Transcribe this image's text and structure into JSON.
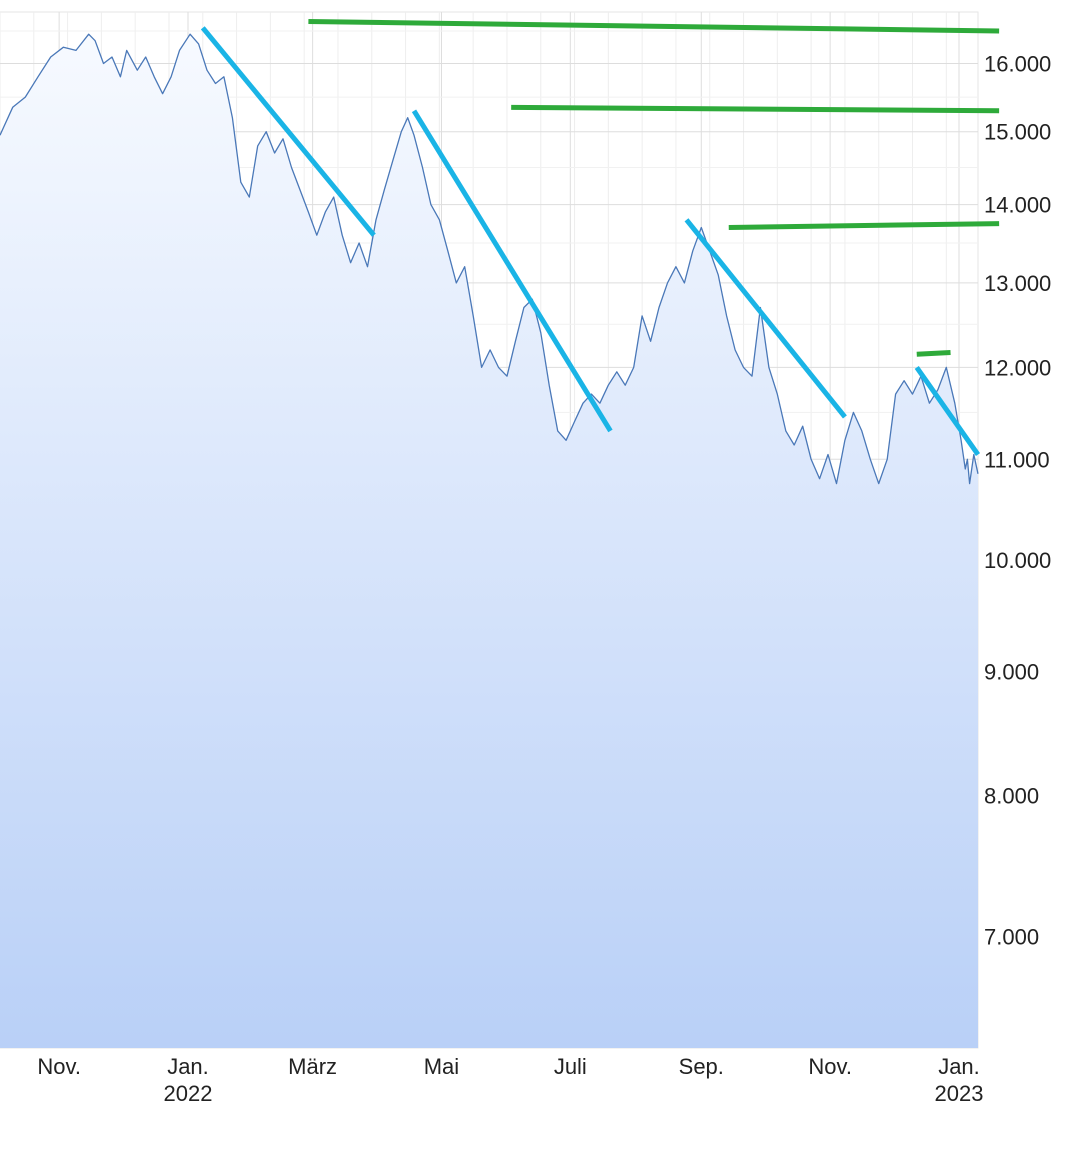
{
  "chart_data": {
    "type": "line",
    "y_scale": "log",
    "ylim": [
      6300,
      16800
    ],
    "y_ticks": [
      {
        "value": 7000,
        "label": "7.000"
      },
      {
        "value": 8000,
        "label": "8.000"
      },
      {
        "value": 9000,
        "label": "9.000"
      },
      {
        "value": 10000,
        "label": "10.000"
      },
      {
        "value": 11000,
        "label": "11.000"
      },
      {
        "value": 12000,
        "label": "12.000"
      },
      {
        "value": 13000,
        "label": "13.000"
      },
      {
        "value": 14000,
        "label": "14.000"
      },
      {
        "value": 15000,
        "label": "15.000"
      },
      {
        "value": 16000,
        "label": "16.000"
      }
    ],
    "xlim": [
      "2021-10-04",
      "2023-01-10"
    ],
    "x_ticks": [
      {
        "date": "2021-11-01",
        "label": "Nov.",
        "sublabel": ""
      },
      {
        "date": "2022-01-01",
        "label": "Jan.",
        "sublabel": "2022"
      },
      {
        "date": "2022-03-01",
        "label": "März",
        "sublabel": ""
      },
      {
        "date": "2022-05-01",
        "label": "Mai",
        "sublabel": ""
      },
      {
        "date": "2022-07-01",
        "label": "Juli",
        "sublabel": ""
      },
      {
        "date": "2022-09-01",
        "label": "Sep.",
        "sublabel": ""
      },
      {
        "date": "2022-11-01",
        "label": "Nov.",
        "sublabel": ""
      },
      {
        "date": "2023-01-01",
        "label": "Jan.",
        "sublabel": "2023"
      }
    ],
    "grid": true,
    "legend": "none",
    "series": [
      {
        "color": "#4a78b8",
        "fill_top": "#f7faff",
        "fill_bottom": "#b9d0f7",
        "points": [
          [
            "2021-10-04",
            14950
          ],
          [
            "2021-10-10",
            15350
          ],
          [
            "2021-10-16",
            15500
          ],
          [
            "2021-10-22",
            15800
          ],
          [
            "2021-10-28",
            16100
          ],
          [
            "2021-11-03",
            16250
          ],
          [
            "2021-11-09",
            16200
          ],
          [
            "2021-11-15",
            16450
          ],
          [
            "2021-11-18",
            16350
          ],
          [
            "2021-11-22",
            16000
          ],
          [
            "2021-11-26",
            16100
          ],
          [
            "2021-11-30",
            15800
          ],
          [
            "2021-12-03",
            16200
          ],
          [
            "2021-12-08",
            15900
          ],
          [
            "2021-12-12",
            16100
          ],
          [
            "2021-12-16",
            15800
          ],
          [
            "2021-12-20",
            15550
          ],
          [
            "2021-12-24",
            15800
          ],
          [
            "2021-12-28",
            16200
          ],
          [
            "2022-01-02",
            16450
          ],
          [
            "2022-01-06",
            16300
          ],
          [
            "2022-01-10",
            15900
          ],
          [
            "2022-01-14",
            15700
          ],
          [
            "2022-01-18",
            15800
          ],
          [
            "2022-01-22",
            15200
          ],
          [
            "2022-01-26",
            14300
          ],
          [
            "2022-01-30",
            14100
          ],
          [
            "2022-02-03",
            14800
          ],
          [
            "2022-02-07",
            15000
          ],
          [
            "2022-02-11",
            14700
          ],
          [
            "2022-02-15",
            14900
          ],
          [
            "2022-02-19",
            14500
          ],
          [
            "2022-02-23",
            14200
          ],
          [
            "2022-02-27",
            13900
          ],
          [
            "2022-03-03",
            13600
          ],
          [
            "2022-03-07",
            13900
          ],
          [
            "2022-03-11",
            14100
          ],
          [
            "2022-03-15",
            13600
          ],
          [
            "2022-03-19",
            13250
          ],
          [
            "2022-03-23",
            13500
          ],
          [
            "2022-03-27",
            13200
          ],
          [
            "2022-03-31",
            13800
          ],
          [
            "2022-04-04",
            14200
          ],
          [
            "2022-04-08",
            14600
          ],
          [
            "2022-04-12",
            15000
          ],
          [
            "2022-04-15",
            15200
          ],
          [
            "2022-04-18",
            14950
          ],
          [
            "2022-04-22",
            14500
          ],
          [
            "2022-04-26",
            14000
          ],
          [
            "2022-04-30",
            13800
          ],
          [
            "2022-05-04",
            13400
          ],
          [
            "2022-05-08",
            13000
          ],
          [
            "2022-05-12",
            13200
          ],
          [
            "2022-05-16",
            12600
          ],
          [
            "2022-05-20",
            12000
          ],
          [
            "2022-05-24",
            12200
          ],
          [
            "2022-05-28",
            12000
          ],
          [
            "2022-06-01",
            11900
          ],
          [
            "2022-06-05",
            12300
          ],
          [
            "2022-06-09",
            12700
          ],
          [
            "2022-06-13",
            12800
          ],
          [
            "2022-06-17",
            12400
          ],
          [
            "2022-06-21",
            11800
          ],
          [
            "2022-06-25",
            11300
          ],
          [
            "2022-06-29",
            11200
          ],
          [
            "2022-07-03",
            11400
          ],
          [
            "2022-07-07",
            11600
          ],
          [
            "2022-07-11",
            11700
          ],
          [
            "2022-07-15",
            11600
          ],
          [
            "2022-07-19",
            11800
          ],
          [
            "2022-07-23",
            11950
          ],
          [
            "2022-07-27",
            11800
          ],
          [
            "2022-07-31",
            12000
          ],
          [
            "2022-08-04",
            12600
          ],
          [
            "2022-08-08",
            12300
          ],
          [
            "2022-08-12",
            12700
          ],
          [
            "2022-08-16",
            13000
          ],
          [
            "2022-08-20",
            13200
          ],
          [
            "2022-08-24",
            13000
          ],
          [
            "2022-08-28",
            13400
          ],
          [
            "2022-09-01",
            13700
          ],
          [
            "2022-09-05",
            13400
          ],
          [
            "2022-09-09",
            13100
          ],
          [
            "2022-09-13",
            12600
          ],
          [
            "2022-09-17",
            12200
          ],
          [
            "2022-09-21",
            12000
          ],
          [
            "2022-09-25",
            11900
          ],
          [
            "2022-09-29",
            12700
          ],
          [
            "2022-10-03",
            12000
          ],
          [
            "2022-10-07",
            11700
          ],
          [
            "2022-10-11",
            11300
          ],
          [
            "2022-10-15",
            11150
          ],
          [
            "2022-10-19",
            11350
          ],
          [
            "2022-10-23",
            11000
          ],
          [
            "2022-10-27",
            10800
          ],
          [
            "2022-10-31",
            11050
          ],
          [
            "2022-11-04",
            10750
          ],
          [
            "2022-11-08",
            11200
          ],
          [
            "2022-11-12",
            11500
          ],
          [
            "2022-11-16",
            11300
          ],
          [
            "2022-11-20",
            11000
          ],
          [
            "2022-11-24",
            10750
          ],
          [
            "2022-11-28",
            11000
          ],
          [
            "2022-12-02",
            11700
          ],
          [
            "2022-12-06",
            11850
          ],
          [
            "2022-12-10",
            11700
          ],
          [
            "2022-12-14",
            11900
          ],
          [
            "2022-12-18",
            11600
          ],
          [
            "2022-12-22",
            11750
          ],
          [
            "2022-12-26",
            12000
          ],
          [
            "2022-12-30",
            11600
          ],
          [
            "2023-01-02",
            11200
          ],
          [
            "2023-01-04",
            10900
          ],
          [
            "2023-01-05",
            11000
          ],
          [
            "2023-01-06",
            10750
          ],
          [
            "2023-01-08",
            11050
          ],
          [
            "2023-01-10",
            10850
          ]
        ]
      }
    ],
    "annotations": {
      "trend_color": "#1ab4e6",
      "level_color": "#2eaa3a",
      "trend_lines": [
        [
          [
            "2022-01-08",
            16550
          ],
          [
            "2022-03-30",
            13600
          ]
        ],
        [
          [
            "2022-04-18",
            15300
          ],
          [
            "2022-07-20",
            11300
          ]
        ],
        [
          [
            "2022-08-25",
            13800
          ],
          [
            "2022-11-08",
            11450
          ]
        ],
        [
          [
            "2022-12-12",
            12000
          ],
          [
            "2023-01-10",
            11050
          ]
        ]
      ],
      "level_lines": [
        [
          [
            "2022-02-27",
            16650
          ],
          [
            "2023-01-20",
            16500
          ]
        ],
        [
          [
            "2022-06-03",
            15350
          ],
          [
            "2023-01-20",
            15300
          ]
        ],
        [
          [
            "2022-09-14",
            13700
          ],
          [
            "2023-01-20",
            13750
          ]
        ],
        [
          [
            "2022-12-12",
            12150
          ],
          [
            "2022-12-28",
            12170
          ]
        ]
      ]
    }
  }
}
